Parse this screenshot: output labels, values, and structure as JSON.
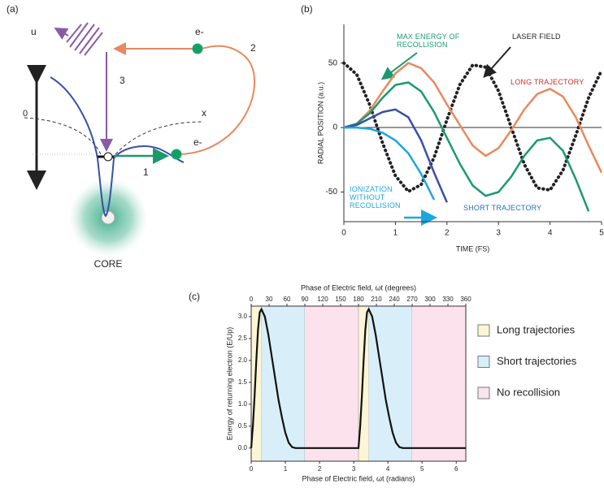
{
  "diagram": {
    "panel_label": "(a)",
    "axis_u": "u",
    "axis_x": "x",
    "origin": "0",
    "electron_top": "e-",
    "electron_bottom": "e-",
    "step1": "1",
    "step2": "2",
    "step3": "3",
    "core": "CORE"
  },
  "chart_data": [
    {
      "type": "line",
      "panel_label": "(b)",
      "x_label": "TIME (FS)",
      "y_label": "RADIAL POSITION (a.u.)",
      "xlim": [
        0,
        5
      ],
      "ylim": [
        -73,
        80
      ],
      "xticks": [
        0,
        1,
        2,
        3,
        4,
        5
      ],
      "yticks": [
        -50,
        0,
        50
      ],
      "zero_line": true,
      "x": [
        0,
        0.25,
        0.5,
        0.75,
        1,
        1.25,
        1.5,
        1.75,
        2,
        2.25,
        2.5,
        2.75,
        3,
        3.25,
        3.5,
        3.75,
        4,
        4.25,
        4.5,
        4.75,
        5
      ],
      "series": [
        {
          "name": "LASER FIELD",
          "color": "#222222",
          "label_color": "#222222",
          "dash": "dotted",
          "values": [
            50,
            41.1,
            17.7,
            -11.9,
            -37.4,
            -49.6,
            -44.3,
            -23.2,
            6,
            33.2,
            48.5,
            46.8,
            28.4,
            0,
            -28.4,
            -46.8,
            -48.5,
            -33.2,
            -6,
            23.2,
            44.3
          ]
        },
        {
          "name": "LONG TRAJECTORY",
          "color": "#e8895e",
          "label_color": "#c8312b",
          "values": [
            0,
            3,
            13,
            28,
            42,
            50,
            46,
            35,
            18,
            2,
            -14,
            -22,
            -16,
            -2,
            14,
            26,
            30,
            24,
            8,
            -14,
            -35
          ]
        },
        {
          "name": "MAX ENERGY OF RECOLLISION",
          "color": "#1a9a6c",
          "label_color": "#1a9a6c",
          "values": [
            0,
            3,
            11,
            23,
            33,
            35,
            28,
            12,
            -8,
            -28,
            -45,
            -53,
            -50,
            -38,
            -22,
            -10,
            -8,
            -18,
            -40,
            -65,
            null
          ]
        },
        {
          "name": "SHORT TRAJECTORY",
          "color": "#3a4fa8",
          "label_color": "#1f6fc0",
          "values": [
            0,
            2,
            7,
            12,
            14,
            8,
            -10,
            -35,
            -58,
            null,
            null,
            null,
            null,
            null,
            null,
            null,
            null,
            null,
            null,
            null,
            null
          ]
        },
        {
          "name": "IONIZATION WITHOUT RECOLLISION",
          "color": "#1aa7e0",
          "label_color": "#1aa7e0",
          "values": [
            0,
            0,
            -1,
            -4,
            -10,
            -20,
            -36,
            -56,
            null,
            null,
            null,
            null,
            null,
            null,
            null,
            null,
            null,
            null,
            null,
            null,
            null
          ]
        }
      ]
    },
    {
      "type": "line",
      "panel_label": "(c)",
      "x_label": "Phase of Electric field, ωt (radians)",
      "x2_label": "Phase of Electric field, ωt (degrees)",
      "y_label": "Energy of returning electron (E/Up)",
      "xlim": [
        0,
        6.28
      ],
      "ylim": [
        -0.3,
        3.24
      ],
      "x2lim": [
        0,
        360
      ],
      "xticks": [
        0,
        1,
        2,
        3,
        4,
        5,
        6
      ],
      "x2ticks": [
        0,
        30,
        60,
        90,
        120,
        150,
        180,
        210,
        240,
        270,
        300,
        330,
        360
      ],
      "yticks": [
        {
          "value": 0,
          "label": "0.0"
        },
        0.5,
        {
          "value": 1,
          "label": "1.0"
        },
        1.5,
        {
          "value": 2,
          "label": "2.0"
        },
        2.5,
        {
          "value": 3,
          "label": "3.0"
        }
      ],
      "color": "#111111",
      "x": [
        0,
        0.05,
        0.1,
        0.15,
        0.2,
        0.25,
        0.3,
        0.4,
        0.5,
        0.6,
        0.7,
        0.8,
        0.9,
        1,
        1.1,
        1.2,
        1.3,
        3.14,
        3.19,
        3.24,
        3.29,
        3.34,
        3.39,
        3.44,
        3.54,
        3.64,
        3.74,
        3.84,
        3.94,
        4.04,
        4.14,
        4.24,
        4.34,
        4.44,
        6.28
      ],
      "values": [
        0,
        0.5,
        1.2,
        2,
        2.7,
        3.1,
        3.17,
        3,
        2.6,
        2.1,
        1.6,
        1.1,
        0.7,
        0.35,
        0.12,
        0.02,
        0,
        0,
        0.5,
        1.2,
        2,
        2.7,
        3.1,
        3.17,
        3,
        2.6,
        2.1,
        1.6,
        1.1,
        0.7,
        0.35,
        0.12,
        0.02,
        0,
        0
      ],
      "bands": [
        {
          "name": "Long trajectories",
          "color": "#fcf6d6",
          "ranges": [
            [
              0,
              0.3
            ],
            [
              3.14,
              3.44
            ]
          ]
        },
        {
          "name": "Short trajectories",
          "color": "#d8eef8",
          "ranges": [
            [
              0.3,
              1.57
            ],
            [
              3.44,
              4.71
            ]
          ]
        },
        {
          "name": "No recollision",
          "color": "#fbe2ec",
          "ranges": [
            [
              1.57,
              3.14
            ],
            [
              4.71,
              6.28
            ]
          ]
        }
      ]
    }
  ]
}
